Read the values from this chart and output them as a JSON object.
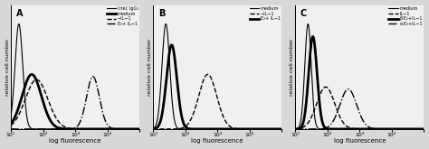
{
  "panels": [
    {
      "label": "A",
      "xlabel": "log fluorescence",
      "ylabel": "relative cell number",
      "legend": [
        {
          "label": "Irrel. IgG₁",
          "linestyle": "-",
          "linewidth": 0.8,
          "color": "black"
        },
        {
          "label": "medium",
          "linestyle": "-",
          "linewidth": 2.0,
          "color": "black"
        },
        {
          "label": "−IL−1",
          "linestyle": "--",
          "linewidth": 1.0,
          "color": "black"
        },
        {
          "label": "E₂+ IL−1",
          "linestyle": "-.",
          "linewidth": 1.0,
          "color": "black"
        }
      ],
      "curves": [
        {
          "mu": 1.25,
          "sigma": 0.12,
          "amp": 1.0,
          "linestyle": "-",
          "linewidth": 0.8,
          "color": "black"
        },
        {
          "mu": 1.65,
          "sigma": 0.3,
          "amp": 0.52,
          "linestyle": "-",
          "linewidth": 2.0,
          "color": "black"
        },
        {
          "mu": 1.8,
          "sigma": 0.35,
          "amp": 0.47,
          "linestyle": "--",
          "linewidth": 1.0,
          "color": "black"
        },
        {
          "mu": 3.55,
          "sigma": 0.2,
          "amp": 0.5,
          "linestyle": "-.",
          "linewidth": 1.0,
          "color": "black"
        }
      ]
    },
    {
      "label": "B",
      "xlabel": "log fluorescence",
      "ylabel": "relative cell number",
      "legend": [
        {
          "label": "medium",
          "linestyle": "-",
          "linewidth": 0.8,
          "color": "black"
        },
        {
          "label": "−IL−1",
          "linestyle": "--",
          "linewidth": 1.0,
          "color": "black"
        },
        {
          "label": "E₂+ IL−1",
          "linestyle": "-",
          "linewidth": 2.0,
          "color": "black"
        }
      ],
      "curves": [
        {
          "mu": 1.4,
          "sigma": 0.12,
          "amp": 1.0,
          "linestyle": "-",
          "linewidth": 0.8,
          "color": "black"
        },
        {
          "mu": 1.58,
          "sigma": 0.16,
          "amp": 0.8,
          "linestyle": "-",
          "linewidth": 2.0,
          "color": "black"
        },
        {
          "mu": 2.7,
          "sigma": 0.28,
          "amp": 0.52,
          "linestyle": "--",
          "linewidth": 1.0,
          "color": "black"
        }
      ]
    },
    {
      "label": "C",
      "xlabel": "log fluorescence",
      "ylabel": "relative cell number",
      "legend": [
        {
          "label": "medium",
          "linestyle": "-",
          "linewidth": 0.8,
          "color": "black"
        },
        {
          "label": "IL−1",
          "linestyle": "--",
          "linewidth": 1.0,
          "color": "black"
        },
        {
          "label": "β-E₂+IL−1",
          "linestyle": "-",
          "linewidth": 2.0,
          "color": "black"
        },
        {
          "label": "α-E₂+IL−1",
          "linestyle": "-.",
          "linewidth": 1.0,
          "color": "black"
        }
      ],
      "curves": [
        {
          "mu": 1.4,
          "sigma": 0.1,
          "amp": 1.0,
          "linestyle": "-",
          "linewidth": 0.8,
          "color": "black"
        },
        {
          "mu": 1.55,
          "sigma": 0.13,
          "amp": 0.88,
          "linestyle": "-",
          "linewidth": 2.0,
          "color": "black"
        },
        {
          "mu": 1.95,
          "sigma": 0.28,
          "amp": 0.4,
          "linestyle": "--",
          "linewidth": 1.0,
          "color": "black"
        },
        {
          "mu": 2.65,
          "sigma": 0.26,
          "amp": 0.38,
          "linestyle": "-.",
          "linewidth": 1.0,
          "color": "black"
        }
      ]
    }
  ],
  "xscale": "log",
  "xlim_log": [
    10,
    100000
  ],
  "xticks_log": [
    10,
    100,
    1000,
    10000,
    100000
  ],
  "xticklabels": [
    "10¹",
    "10²",
    "10³",
    "10⁴",
    ""
  ],
  "background_color": "#d8d8d8",
  "plot_bg": "#f0f0f0",
  "fig_width": 4.74,
  "fig_height": 1.65,
  "dpi": 100
}
